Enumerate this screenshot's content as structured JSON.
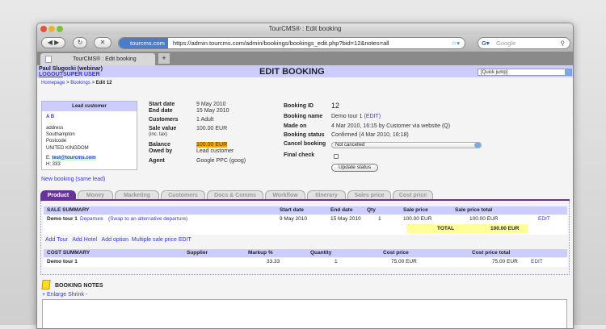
{
  "browser": {
    "window_title": "TourCMS® : Edit booking",
    "site_badge": "tourcms.com",
    "url": "https://admin.tourcms.com/admin/bookings/bookings_edit.php?bid=12&notes=all",
    "search_placeholder": "Google",
    "tab_title": "TourCMS® : Edit booking",
    "new_tab": "+"
  },
  "header": {
    "user": "Paul Slugocki (webinar)",
    "logout": "LOGOUT",
    "super_user": "SUPER USER",
    "title": "EDIT BOOKING",
    "quick_jump": "[Quick jump]"
  },
  "breadcrumb": {
    "home": "Homepage",
    "sep1": " > ",
    "bookings": "Bookings",
    "sep2": " > ",
    "current": "Edit 12"
  },
  "lead": {
    "title": "Lead customer",
    "name": "A B",
    "address": "address",
    "city": "Southampton",
    "postcode": "Postcode",
    "country": "UNITED KINGDOM",
    "email_label": "E:",
    "email": "test@tourcms.com",
    "phone": "H: 333"
  },
  "summary": {
    "start_label": "Start date",
    "start": "9 May 2010",
    "end_label": "End date",
    "end": "15 May 2010",
    "customers_label": "Customers",
    "customers": "1 Adult",
    "sale_label": "Sale value",
    "sale_sub": "(inc. tax)",
    "sale": "100.00 EUR",
    "balance_label": "Balance",
    "balance": "100.00 EUR",
    "owed_label": "Owed by",
    "owed": "Lead customer",
    "agent_label": "Agent",
    "agent": "Google PPC (goog)"
  },
  "booking": {
    "id_label": "Booking ID",
    "id": "12",
    "name_label": "Booking name",
    "name": "Demo tour 1",
    "name_edit": "(EDIT)",
    "made_label": "Made on",
    "made": "4 Mar 2010, 16:15 by Customer via website (Q)",
    "status_label": "Booking status",
    "status": "Confirmed (4 Mar 2010, 16:18)",
    "cancel_label": "Cancel booking",
    "cancel_value": "Not cancelled",
    "final_label": "Final check",
    "final_checked": false,
    "update": "Update status"
  },
  "new_booking": "New booking (same lead)",
  "tabs": [
    "Product",
    "Money",
    "Marketing",
    "Customers",
    "Docs & Comms",
    "Workflow",
    "Itinerary",
    "Sales price",
    "Cost price"
  ],
  "active_tab": "Product",
  "sale_summary": {
    "headers": [
      "SALE SUMMARY",
      "Start date",
      "End date",
      "Qty",
      "Sale price",
      "Sale price total"
    ],
    "row": {
      "name": "Demo tour 1",
      "departure": "Departure",
      "swap": "(Swap to an alternative departure)",
      "start": "9 May 2010",
      "end": "15 May 2010",
      "qty": "1",
      "price": "100.00 EUR",
      "total": "100.00 EUR",
      "edit": "EDIT"
    },
    "total_label": "TOTAL",
    "total": "100.00 EUR"
  },
  "add_links": [
    "Add Tour",
    "Add Hotel",
    "Add option",
    "Multiple sale price EDIT"
  ],
  "cost_summary": {
    "headers": [
      "COST SUMMARY",
      "Supplier",
      "Markup %",
      "Quantity",
      "Cost price",
      "Cost price total"
    ],
    "row": {
      "name": "Demo tour 1",
      "supplier": "",
      "markup": "33.33",
      "qty": "1",
      "price": "75.00 EUR",
      "total": "75.00 EUR",
      "edit": "EDIT"
    }
  },
  "notes": {
    "title": "BOOKING NOTES",
    "enlarge": "+ Enlarge",
    "shrink": "Shrink -"
  },
  "colors": {
    "header_bg": "#ccccff",
    "tab_active": "#663399",
    "balance_bg": "#ffaa00",
    "total_bg": "#ffff99",
    "link": "#3333ff"
  }
}
